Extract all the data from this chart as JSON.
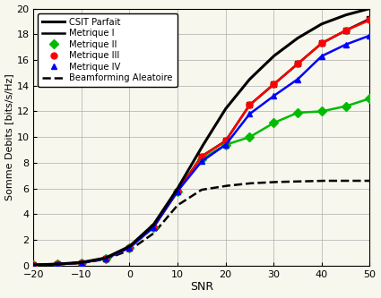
{
  "snr": [
    -20,
    -15,
    -10,
    -5,
    0,
    5,
    10,
    15,
    20,
    25,
    30,
    35,
    40,
    45,
    50
  ],
  "csit_parfait": [
    0.05,
    0.12,
    0.25,
    0.6,
    1.5,
    3.2,
    6.0,
    9.2,
    12.2,
    14.5,
    16.3,
    17.7,
    18.8,
    19.5,
    20.0
  ],
  "metrique_I": [
    0.05,
    0.12,
    0.22,
    0.55,
    1.4,
    3.0,
    5.8,
    8.5,
    9.7,
    12.5,
    14.1,
    15.7,
    17.3,
    18.3,
    19.2
  ],
  "metrique_II": [
    0.05,
    0.12,
    0.22,
    0.55,
    1.4,
    3.0,
    5.8,
    8.3,
    9.4,
    10.0,
    11.1,
    11.9,
    12.0,
    12.4,
    13.0
  ],
  "metrique_III": [
    0.05,
    0.12,
    0.22,
    0.55,
    1.4,
    3.0,
    5.8,
    8.5,
    9.7,
    12.5,
    14.1,
    15.7,
    17.3,
    18.3,
    19.1
  ],
  "metrique_IV": [
    0.05,
    0.12,
    0.22,
    0.55,
    1.4,
    3.0,
    5.8,
    8.1,
    9.4,
    11.8,
    13.2,
    14.5,
    16.3,
    17.2,
    17.9
  ],
  "beamforming_aleatoire": [
    0.04,
    0.09,
    0.2,
    0.5,
    1.2,
    2.5,
    4.7,
    5.9,
    6.2,
    6.4,
    6.5,
    6.55,
    6.6,
    6.6,
    6.6
  ],
  "xlim": [
    -20,
    50
  ],
  "ylim": [
    0,
    20
  ],
  "xlabel": "SNR",
  "ylabel": "Somme Debits [bits/s/Hz]",
  "xticks": [
    -20,
    -10,
    0,
    10,
    20,
    30,
    40,
    50
  ],
  "yticks": [
    0,
    2,
    4,
    6,
    8,
    10,
    12,
    14,
    16,
    18,
    20
  ],
  "legend_labels": [
    "CSIT Parfait",
    "Metrique I",
    "Metrique II",
    "Metrique III",
    "Metrique IV",
    "Beamforming Aleatoire"
  ],
  "color_csit": "#000000",
  "color_met1": "#000000",
  "color_met2": "#00bb00",
  "color_met3": "#ff0000",
  "color_met4": "#0000ff",
  "color_beam": "#000000",
  "bg_color": "#f7f7ee",
  "grid_color": "#aaaaaa"
}
